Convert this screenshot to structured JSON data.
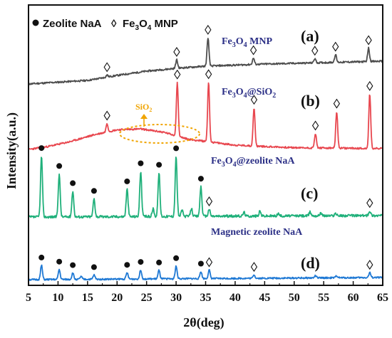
{
  "chart_data": {
    "type": "line",
    "xlabel": "2θ(deg)",
    "ylabel": "Intensity(a.u.)",
    "xlim": [
      5,
      65
    ],
    "xticks": [
      5,
      10,
      15,
      20,
      25,
      30,
      35,
      40,
      45,
      50,
      55,
      60,
      65
    ],
    "legend": [
      {
        "marker": "●",
        "label": "Zeolite NaA"
      },
      {
        "marker": "◊",
        "label": "Fe3O4 MNP"
      }
    ],
    "annotation": {
      "text": "SiO2",
      "position_2theta": 23
    },
    "series": [
      {
        "name": "Fe3O4 MNP",
        "panel": "(a)",
        "color": "#4d4d4d",
        "baseline": [
          [
            5,
            0.0
          ],
          [
            15,
            5
          ],
          [
            20,
            12
          ],
          [
            25,
            18
          ],
          [
            30,
            22
          ],
          [
            35,
            25
          ],
          [
            45,
            28
          ],
          [
            55,
            30
          ],
          [
            65,
            32
          ]
        ],
        "peaks": [
          {
            "x": 18.3,
            "h": 3,
            "marker": "◊"
          },
          {
            "x": 30.1,
            "h": 12,
            "marker": "◊"
          },
          {
            "x": 35.4,
            "h": 40,
            "marker": "◊"
          },
          {
            "x": 43.1,
            "h": 9,
            "marker": "◊"
          },
          {
            "x": 53.5,
            "h": 6,
            "marker": "◊"
          },
          {
            "x": 57.0,
            "h": 11,
            "marker": "◊"
          },
          {
            "x": 62.6,
            "h": 19,
            "marker": "◊"
          }
        ]
      },
      {
        "name": "Fe3O4@SiO2",
        "panel": "(b)",
        "color": "#e8474f",
        "baseline": [
          [
            5,
            0
          ],
          [
            8,
            3
          ],
          [
            12,
            9
          ],
          [
            16,
            17
          ],
          [
            20,
            23
          ],
          [
            24,
            24
          ],
          [
            28,
            20
          ],
          [
            32,
            12
          ],
          [
            40,
            5
          ],
          [
            50,
            2
          ],
          [
            65,
            1
          ]
        ],
        "peaks": [
          {
            "x": 18.3,
            "h": 10,
            "marker": "◊"
          },
          {
            "x": 30.2,
            "h": 63,
            "marker": "◊"
          },
          {
            "x": 35.5,
            "h": 70,
            "marker": "◊"
          },
          {
            "x": 43.2,
            "h": 45,
            "marker": "◊"
          },
          {
            "x": 53.6,
            "h": 17,
            "marker": "◊"
          },
          {
            "x": 57.2,
            "h": 43,
            "marker": "◊"
          },
          {
            "x": 62.8,
            "h": 64,
            "marker": "◊"
          }
        ]
      },
      {
        "name": "Fe3O4@zeolite NaA",
        "panel": "(c)",
        "color": "#1fb07a",
        "baseline": [
          [
            5,
            0
          ],
          [
            65,
            2
          ]
        ],
        "peaks": [
          {
            "x": 7.2,
            "h": 78,
            "marker": "●"
          },
          {
            "x": 10.2,
            "h": 55,
            "marker": "●"
          },
          {
            "x": 12.5,
            "h": 33,
            "marker": "●"
          },
          {
            "x": 16.1,
            "h": 23,
            "marker": "●"
          },
          {
            "x": 21.7,
            "h": 35,
            "marker": "●"
          },
          {
            "x": 24.0,
            "h": 58,
            "marker": "●"
          },
          {
            "x": 26.1,
            "h": 10
          },
          {
            "x": 27.1,
            "h": 56,
            "marker": "●"
          },
          {
            "x": 30.0,
            "h": 77,
            "marker": "●"
          },
          {
            "x": 31.0,
            "h": 8
          },
          {
            "x": 32.6,
            "h": 10
          },
          {
            "x": 34.2,
            "h": 38,
            "marker": "●"
          },
          {
            "x": 35.6,
            "h": 9,
            "marker": "◊"
          },
          {
            "x": 41.5,
            "h": 5
          },
          {
            "x": 44.2,
            "h": 6
          },
          {
            "x": 47.3,
            "h": 3
          },
          {
            "x": 52.7,
            "h": 5
          },
          {
            "x": 54.5,
            "h": 4
          },
          {
            "x": 57.0,
            "h": 3
          },
          {
            "x": 62.8,
            "h": 6,
            "marker": "◊"
          }
        ]
      },
      {
        "name": "Magnetic zeolite NaA",
        "panel": "(d)",
        "color": "#1e78d4",
        "baseline": [
          [
            5,
            0
          ],
          [
            65,
            3
          ]
        ],
        "peaks": [
          {
            "x": 7.2,
            "h": 20,
            "marker": "●"
          },
          {
            "x": 10.2,
            "h": 14,
            "marker": "●"
          },
          {
            "x": 12.5,
            "h": 9,
            "marker": "●"
          },
          {
            "x": 13.9,
            "h": 4
          },
          {
            "x": 16.1,
            "h": 6,
            "marker": "●"
          },
          {
            "x": 21.7,
            "h": 9,
            "marker": "●"
          },
          {
            "x": 24.0,
            "h": 13,
            "marker": "●"
          },
          {
            "x": 27.1,
            "h": 12,
            "marker": "●"
          },
          {
            "x": 30.0,
            "h": 18,
            "marker": "●"
          },
          {
            "x": 34.2,
            "h": 10,
            "marker": "●"
          },
          {
            "x": 35.6,
            "h": 12,
            "marker": "◊"
          },
          {
            "x": 43.2,
            "h": 5,
            "marker": "◊"
          },
          {
            "x": 53.6,
            "h": 3
          },
          {
            "x": 57.2,
            "h": 3
          },
          {
            "x": 62.8,
            "h": 7,
            "marker": "◊"
          }
        ]
      }
    ]
  }
}
